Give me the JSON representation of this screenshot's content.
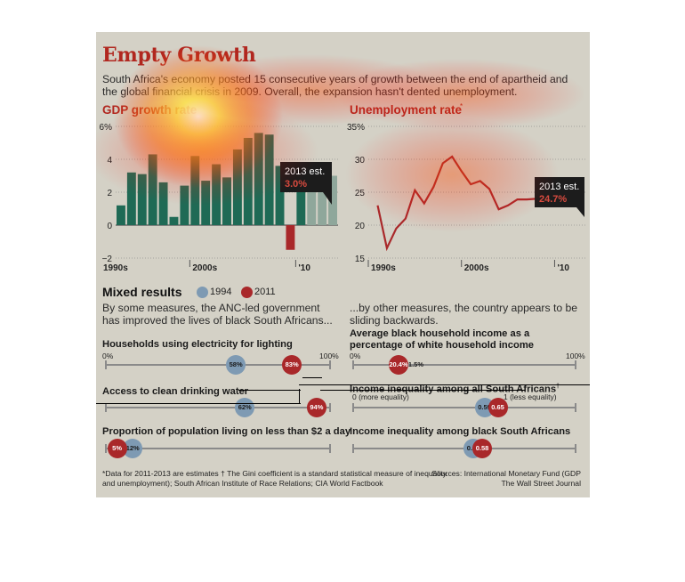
{
  "title": "Empty Growth",
  "subtitle": "South Africa's economy posted 15 consecutive years of growth between the end of apartheid and the global financial crisis in 2009. Overall, the expansion hasn't dented unemployment.",
  "chart_data": [
    {
      "type": "bar",
      "title": "GDP growth rate",
      "x": [
        1993,
        1994,
        1995,
        1996,
        1997,
        1998,
        1999,
        2000,
        2001,
        2002,
        2003,
        2004,
        2005,
        2006,
        2007,
        2008,
        2009,
        2010,
        2011,
        2012,
        2013
      ],
      "values": [
        1.2,
        3.2,
        3.1,
        4.3,
        2.6,
        0.5,
        2.4,
        4.2,
        2.7,
        3.7,
        2.9,
        4.6,
        5.3,
        5.6,
        5.5,
        3.6,
        -1.5,
        2.9,
        3.1,
        2.6,
        3.0
      ],
      "estimate_from": 2011,
      "ylim": [
        -2,
        6
      ],
      "yticks": [
        "6%",
        "4",
        "2",
        "0",
        "−2"
      ],
      "xticks": [
        "1990s",
        "2000s",
        "'10"
      ],
      "callout": {
        "label": "2013 est.",
        "value": "3.0%"
      },
      "colors": {
        "bar": "#1f6a55",
        "estimate": "#8fa79b",
        "negative": "#a9282a"
      }
    },
    {
      "type": "line",
      "title": "Unemployment rate",
      "title_mark": "*",
      "x": [
        1991,
        1992,
        1993,
        1994,
        1995,
        1996,
        1997,
        1998,
        1999,
        2000,
        2001,
        2002,
        2003,
        2004,
        2005,
        2006,
        2007,
        2008,
        2009,
        2010,
        2011,
        2012,
        2013
      ],
      "values": [
        23.0,
        16.5,
        19.5,
        21.0,
        25.3,
        23.3,
        25.8,
        29.4,
        30.4,
        28.2,
        26.2,
        26.7,
        25.5,
        22.4,
        23.0,
        23.9,
        23.9,
        24.0,
        23.9,
        24.0,
        24.1,
        24.4,
        24.7
      ],
      "estimate_from": 2011,
      "ylim": [
        15,
        35
      ],
      "yticks": [
        "35%",
        "30",
        "25",
        "20",
        "15"
      ],
      "xticks": [
        "1990s",
        "2000s",
        "'10"
      ],
      "callout": {
        "label": "2013 est.",
        "value": "24.7%"
      },
      "colors": {
        "line": "#a9282a"
      }
    }
  ],
  "mixed": {
    "heading": "Mixed results",
    "legend": [
      {
        "label": "1994",
        "color": "#7e9ab3"
      },
      {
        "label": "2011",
        "color": "#a9282a"
      }
    ],
    "left_lead": "By some measures, the ANC-led government has improved the lives of black South Africans...",
    "right_lead": "...by other measures, the country appears to be sliding backwards.",
    "scale_min": "0%",
    "scale_max": "100%",
    "metrics": [
      {
        "title": "Households using electricity for lighting",
        "v1994": 58,
        "v2011": 83,
        "l1994": "58%",
        "l2011": "83%"
      },
      {
        "title": "Access to clean drinking water",
        "v1994": 62,
        "v2011": 94,
        "l1994": "62%",
        "l2011": "94%"
      },
      {
        "title": "Proportion of population living on less than $2 a day",
        "v1994": 12,
        "v2011": 5,
        "l1994": "12%",
        "l2011": "5%"
      }
    ],
    "right_metrics": [
      {
        "title": "Average black household income as a percentage of white household income",
        "v1994": 21.5,
        "v2011": 20.4,
        "l1994": "21.5%",
        "l2011": "20.4%"
      },
      {
        "title": "Income inequality among all South Africans",
        "title_mark": "†",
        "v1994": 0.59,
        "v2011": 0.65,
        "l1994": "0.59",
        "l2011": "0.65"
      },
      {
        "title": "Income inequality among black South Africans",
        "v1994": 0.54,
        "v2011": 0.58,
        "l1994": "0.54",
        "l2011": "0.58"
      }
    ],
    "gini_min": "0 (more equality)",
    "gini_max": "1 (less equality)"
  },
  "footnote": "*Data for 2011-2013 are estimates  † The Gini coefficient is a standard statistical measure of inequality.",
  "sources_left": "and unemployment); South African Institute of Race Relations; CIA World Factbook",
  "sources_right1": "Sources: International Monetary Fund (GDP",
  "sources_right2": "The Wall Street Journal"
}
